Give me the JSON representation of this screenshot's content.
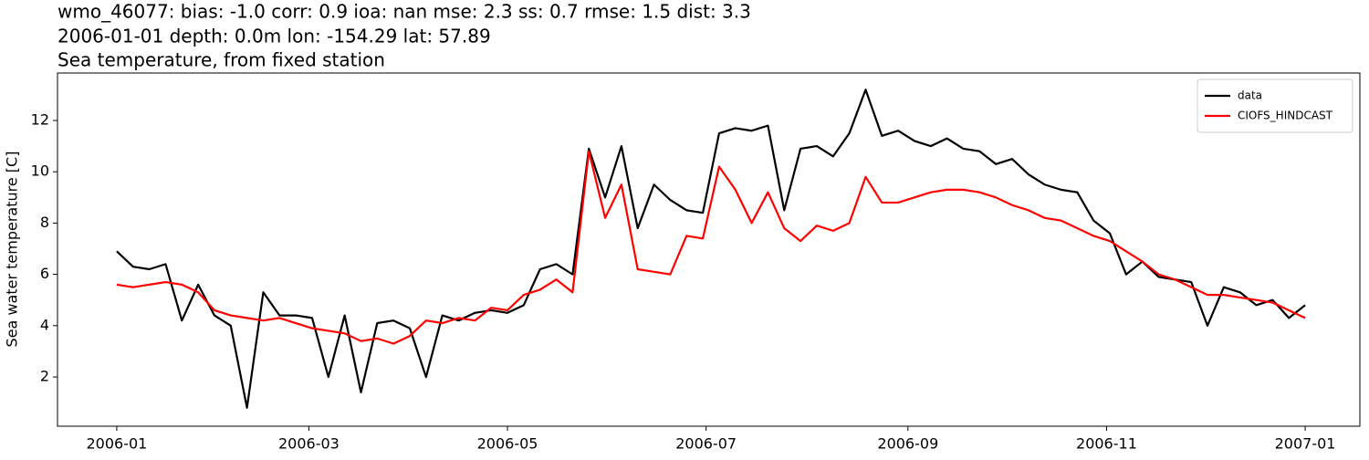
{
  "chart_data": {
    "type": "line",
    "title": "wmo_46077: bias: -1.0  corr: 0.9  ioa: nan  mse: 2.3  ss: 0.7  rmse: 1.5  dist: 3.3",
    "subtitle": "2006-01-01 depth: 0.0m lon: -154.29 lat: 57.89",
    "subtitle2": "Sea temperature, from fixed station",
    "y_label": "Sea water temperature [C]",
    "x": [
      0,
      5,
      10,
      15,
      20,
      25,
      30,
      35,
      40,
      45,
      50,
      55,
      60,
      65,
      70,
      75,
      80,
      85,
      90,
      95,
      100,
      105,
      110,
      115,
      120,
      125,
      130,
      135,
      140,
      145,
      150,
      155,
      160,
      165,
      170,
      175,
      180,
      185,
      190,
      195,
      200,
      205,
      210,
      215,
      220,
      225,
      230,
      235,
      240,
      245,
      250,
      255,
      260,
      265,
      270,
      275,
      280,
      285,
      290,
      295,
      300,
      305,
      310,
      315,
      320,
      325,
      330,
      335,
      340,
      345,
      350,
      355,
      360,
      365
    ],
    "series": [
      {
        "name": "data",
        "color": "#000000",
        "values": [
          6.9,
          6.3,
          6.2,
          6.4,
          4.2,
          5.6,
          4.4,
          4.0,
          0.8,
          5.3,
          4.4,
          4.4,
          4.3,
          2.0,
          4.4,
          1.4,
          4.1,
          4.2,
          3.9,
          2.0,
          4.4,
          4.2,
          4.5,
          4.6,
          4.5,
          4.8,
          6.2,
          6.4,
          6.0,
          10.9,
          9.0,
          11.0,
          7.8,
          9.5,
          8.9,
          8.5,
          8.4,
          11.5,
          11.7,
          11.6,
          11.8,
          8.5,
          10.9,
          11.0,
          10.6,
          11.5,
          13.2,
          11.4,
          11.6,
          11.2,
          11.0,
          11.3,
          10.9,
          10.8,
          10.3,
          10.5,
          9.9,
          9.5,
          9.3,
          9.2,
          8.1,
          7.6,
          6.0,
          6.5,
          5.9,
          5.8,
          5.7,
          4.0,
          5.5,
          5.3,
          4.8,
          5.0,
          4.3,
          4.8
        ]
      },
      {
        "name": "CIOFS_HINDCAST",
        "color": "#ff0000",
        "values": [
          5.6,
          5.5,
          5.6,
          5.7,
          5.6,
          5.3,
          4.6,
          4.4,
          4.3,
          4.2,
          4.3,
          4.1,
          3.9,
          3.8,
          3.7,
          3.4,
          3.5,
          3.3,
          3.6,
          4.2,
          4.1,
          4.3,
          4.2,
          4.7,
          4.6,
          5.2,
          5.4,
          5.8,
          5.3,
          10.8,
          8.2,
          9.5,
          6.2,
          6.1,
          6.0,
          7.5,
          7.4,
          10.2,
          9.3,
          8.0,
          9.2,
          7.8,
          7.3,
          7.9,
          7.7,
          8.0,
          9.8,
          8.8,
          8.8,
          9.0,
          9.2,
          9.3,
          9.3,
          9.2,
          9.0,
          8.7,
          8.5,
          8.2,
          8.1,
          7.8,
          7.5,
          7.3,
          6.9,
          6.5,
          6.0,
          5.8,
          5.5,
          5.2,
          5.2,
          5.1,
          5.0,
          4.9,
          4.6,
          4.3
        ]
      }
    ],
    "xlim": [
      -18.2,
      381.8
    ],
    "xticks": [
      {
        "value": 0,
        "label": "2006-01"
      },
      {
        "value": 59,
        "label": "2006-03"
      },
      {
        "value": 120,
        "label": "2006-05"
      },
      {
        "value": 181,
        "label": "2006-07"
      },
      {
        "value": 243,
        "label": "2006-09"
      },
      {
        "value": 304,
        "label": "2006-11"
      },
      {
        "value": 365,
        "label": "2007-01"
      }
    ],
    "ylim": [
      0.08,
      13.85
    ],
    "yticks": [
      2,
      4,
      6,
      8,
      10,
      12
    ],
    "legend": "upper right",
    "grid": false
  }
}
